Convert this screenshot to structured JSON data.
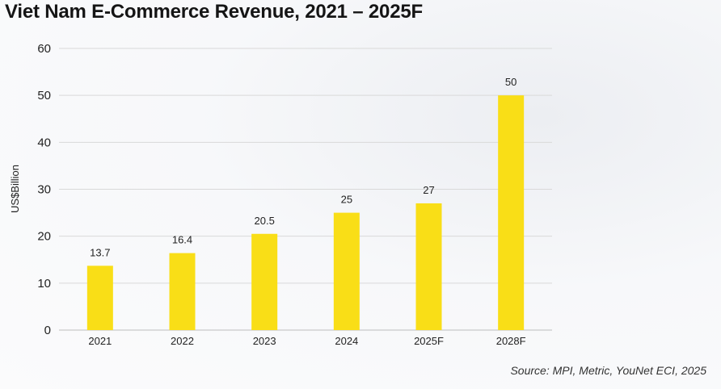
{
  "chart_data": {
    "type": "bar",
    "title": "Viet Nam E-Commerce Revenue, 2021 – 2025F",
    "categories": [
      "2021",
      "2022",
      "2023",
      "2024",
      "2025F",
      "2028F"
    ],
    "values": [
      13.7,
      16.4,
      20.5,
      25,
      27,
      50
    ],
    "data_labels": [
      "13.7",
      "16.4",
      "20.5",
      "25",
      "27",
      "50"
    ],
    "ylabel": "US$Billion",
    "xlabel": "",
    "ylim": [
      0,
      60
    ],
    "yticks": [
      0,
      10,
      20,
      30,
      40,
      50,
      60
    ],
    "grid": true,
    "bar_color": "#f9de17",
    "grid_color": "#d9d9d9",
    "source": "Source: MPI, Metric, YouNet ECI, 2025"
  }
}
